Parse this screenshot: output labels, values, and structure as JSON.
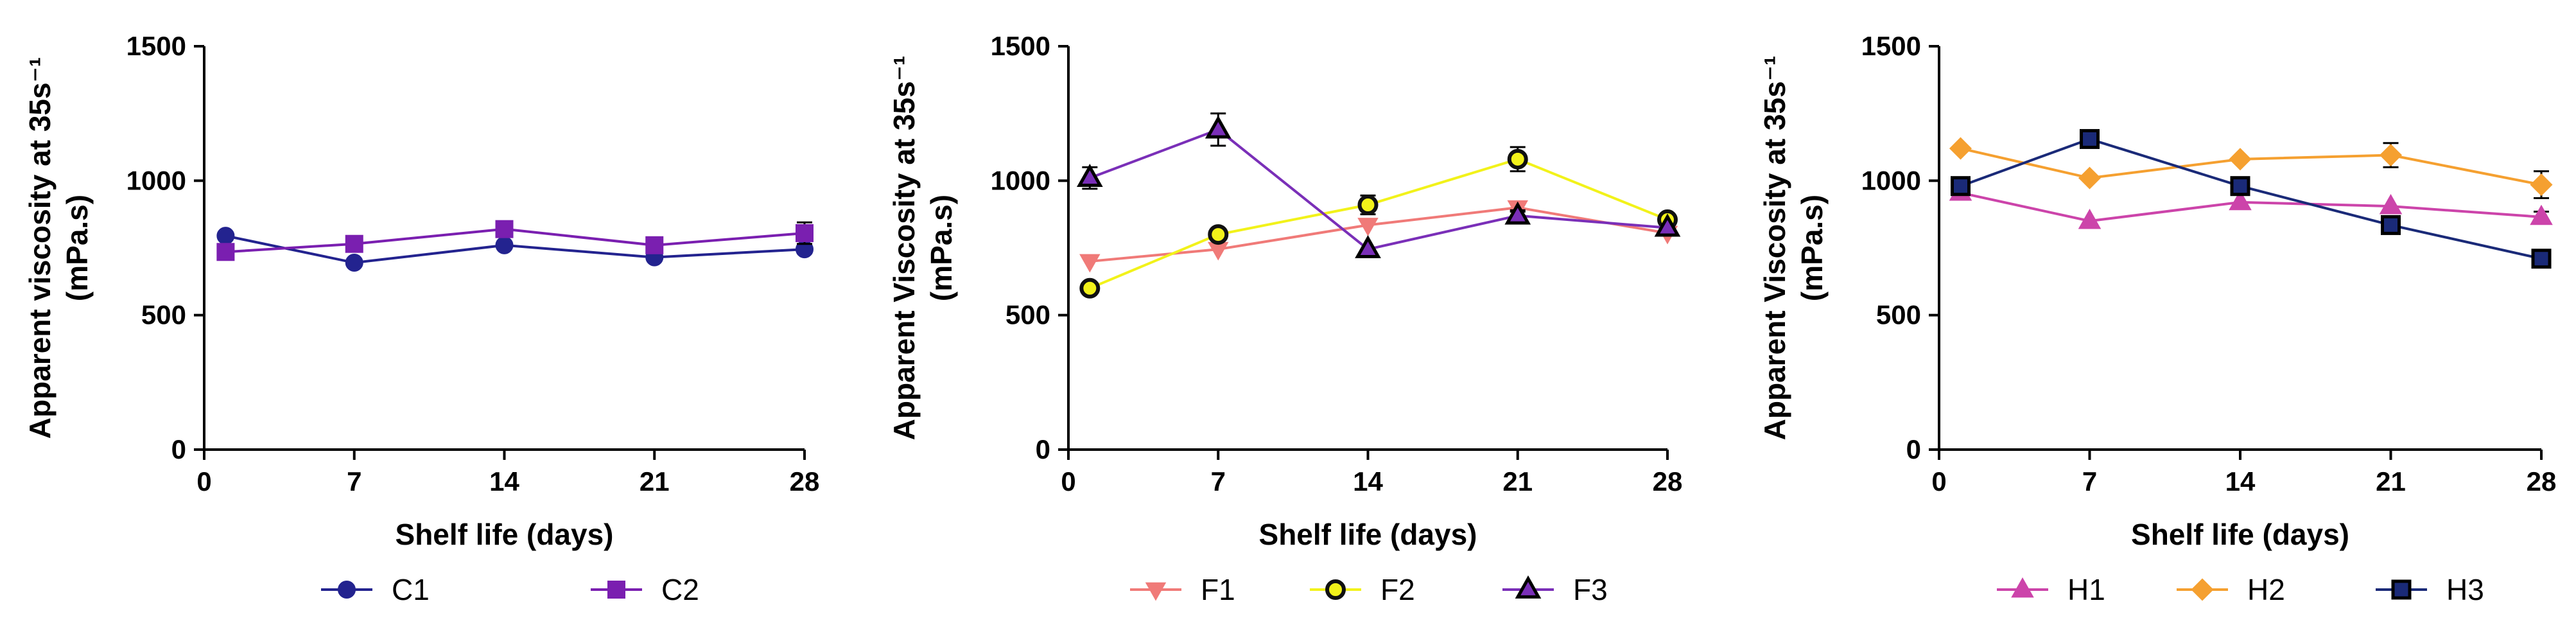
{
  "chart_data": [
    {
      "type": "line",
      "xlabel": "Shelf life (days)",
      "ylabel": "Apparent viscosity at 35s⁻¹\n(mPa.s)",
      "xlim": [
        0,
        28
      ],
      "ylim": [
        0,
        1500
      ],
      "xticks": [
        0,
        7,
        14,
        21,
        28
      ],
      "yticks": [
        0,
        500,
        1000,
        1500
      ],
      "x": [
        1,
        7,
        14,
        21,
        28
      ],
      "legend_position": "bottom",
      "series": [
        {
          "name": "C1",
          "color": "#23238f",
          "marker": "circle",
          "values": [
            795,
            695,
            760,
            715,
            745
          ],
          "error": [
            0,
            0,
            10,
            10,
            15
          ]
        },
        {
          "name": "C2",
          "color": "#7a1fb0",
          "marker": "square",
          "values": [
            735,
            765,
            820,
            760,
            805
          ],
          "error": [
            0,
            0,
            20,
            15,
            40
          ]
        }
      ]
    },
    {
      "type": "line",
      "xlabel": "Shelf life (days)",
      "ylabel": "Apparent Viscosity at 35s⁻¹\n(mPa.s)",
      "xlim": [
        0,
        28
      ],
      "ylim": [
        0,
        1500
      ],
      "xticks": [
        0,
        7,
        14,
        21,
        28
      ],
      "yticks": [
        0,
        500,
        1000,
        1500
      ],
      "x": [
        1,
        7,
        14,
        21,
        28
      ],
      "legend_position": "bottom",
      "series": [
        {
          "name": "F1",
          "color": "#f07a78",
          "marker": "triangle-down",
          "values": [
            700,
            745,
            835,
            900,
            805
          ],
          "error": [
            0,
            0,
            0,
            15,
            0
          ]
        },
        {
          "name": "F2",
          "color": "#f2f21a",
          "marker": "circle",
          "values": [
            600,
            800,
            910,
            1080,
            855
          ],
          "error": [
            0,
            15,
            35,
            45,
            20
          ]
        },
        {
          "name": "F3",
          "color": "#7a2fb8",
          "marker": "triangle-up",
          "values": [
            1010,
            1190,
            745,
            870,
            825
          ],
          "error": [
            40,
            60,
            0,
            20,
            0
          ]
        }
      ]
    },
    {
      "type": "line",
      "xlabel": "Shelf life (days)",
      "ylabel": "Apparent Viscosity at 35s⁻¹\n(mPa.s)",
      "xlim": [
        0,
        28
      ],
      "ylim": [
        0,
        1500
      ],
      "xticks": [
        0,
        7,
        14,
        21,
        28
      ],
      "yticks": [
        0,
        500,
        1000,
        1500
      ],
      "x": [
        1,
        7,
        14,
        21,
        28
      ],
      "legend_position": "bottom",
      "series": [
        {
          "name": "H1",
          "color": "#cc44aa",
          "marker": "triangle-up",
          "values": [
            955,
            850,
            920,
            905,
            865
          ],
          "error": [
            0,
            0,
            0,
            0,
            20
          ]
        },
        {
          "name": "H2",
          "color": "#f5a030",
          "marker": "diamond",
          "values": [
            1120,
            1010,
            1080,
            1095,
            985
          ],
          "error": [
            0,
            0,
            0,
            45,
            50
          ]
        },
        {
          "name": "H3",
          "color": "#1a2a78",
          "marker": "square",
          "values": [
            980,
            1155,
            980,
            835,
            710
          ],
          "error": [
            0,
            0,
            0,
            0,
            15
          ]
        }
      ]
    }
  ]
}
